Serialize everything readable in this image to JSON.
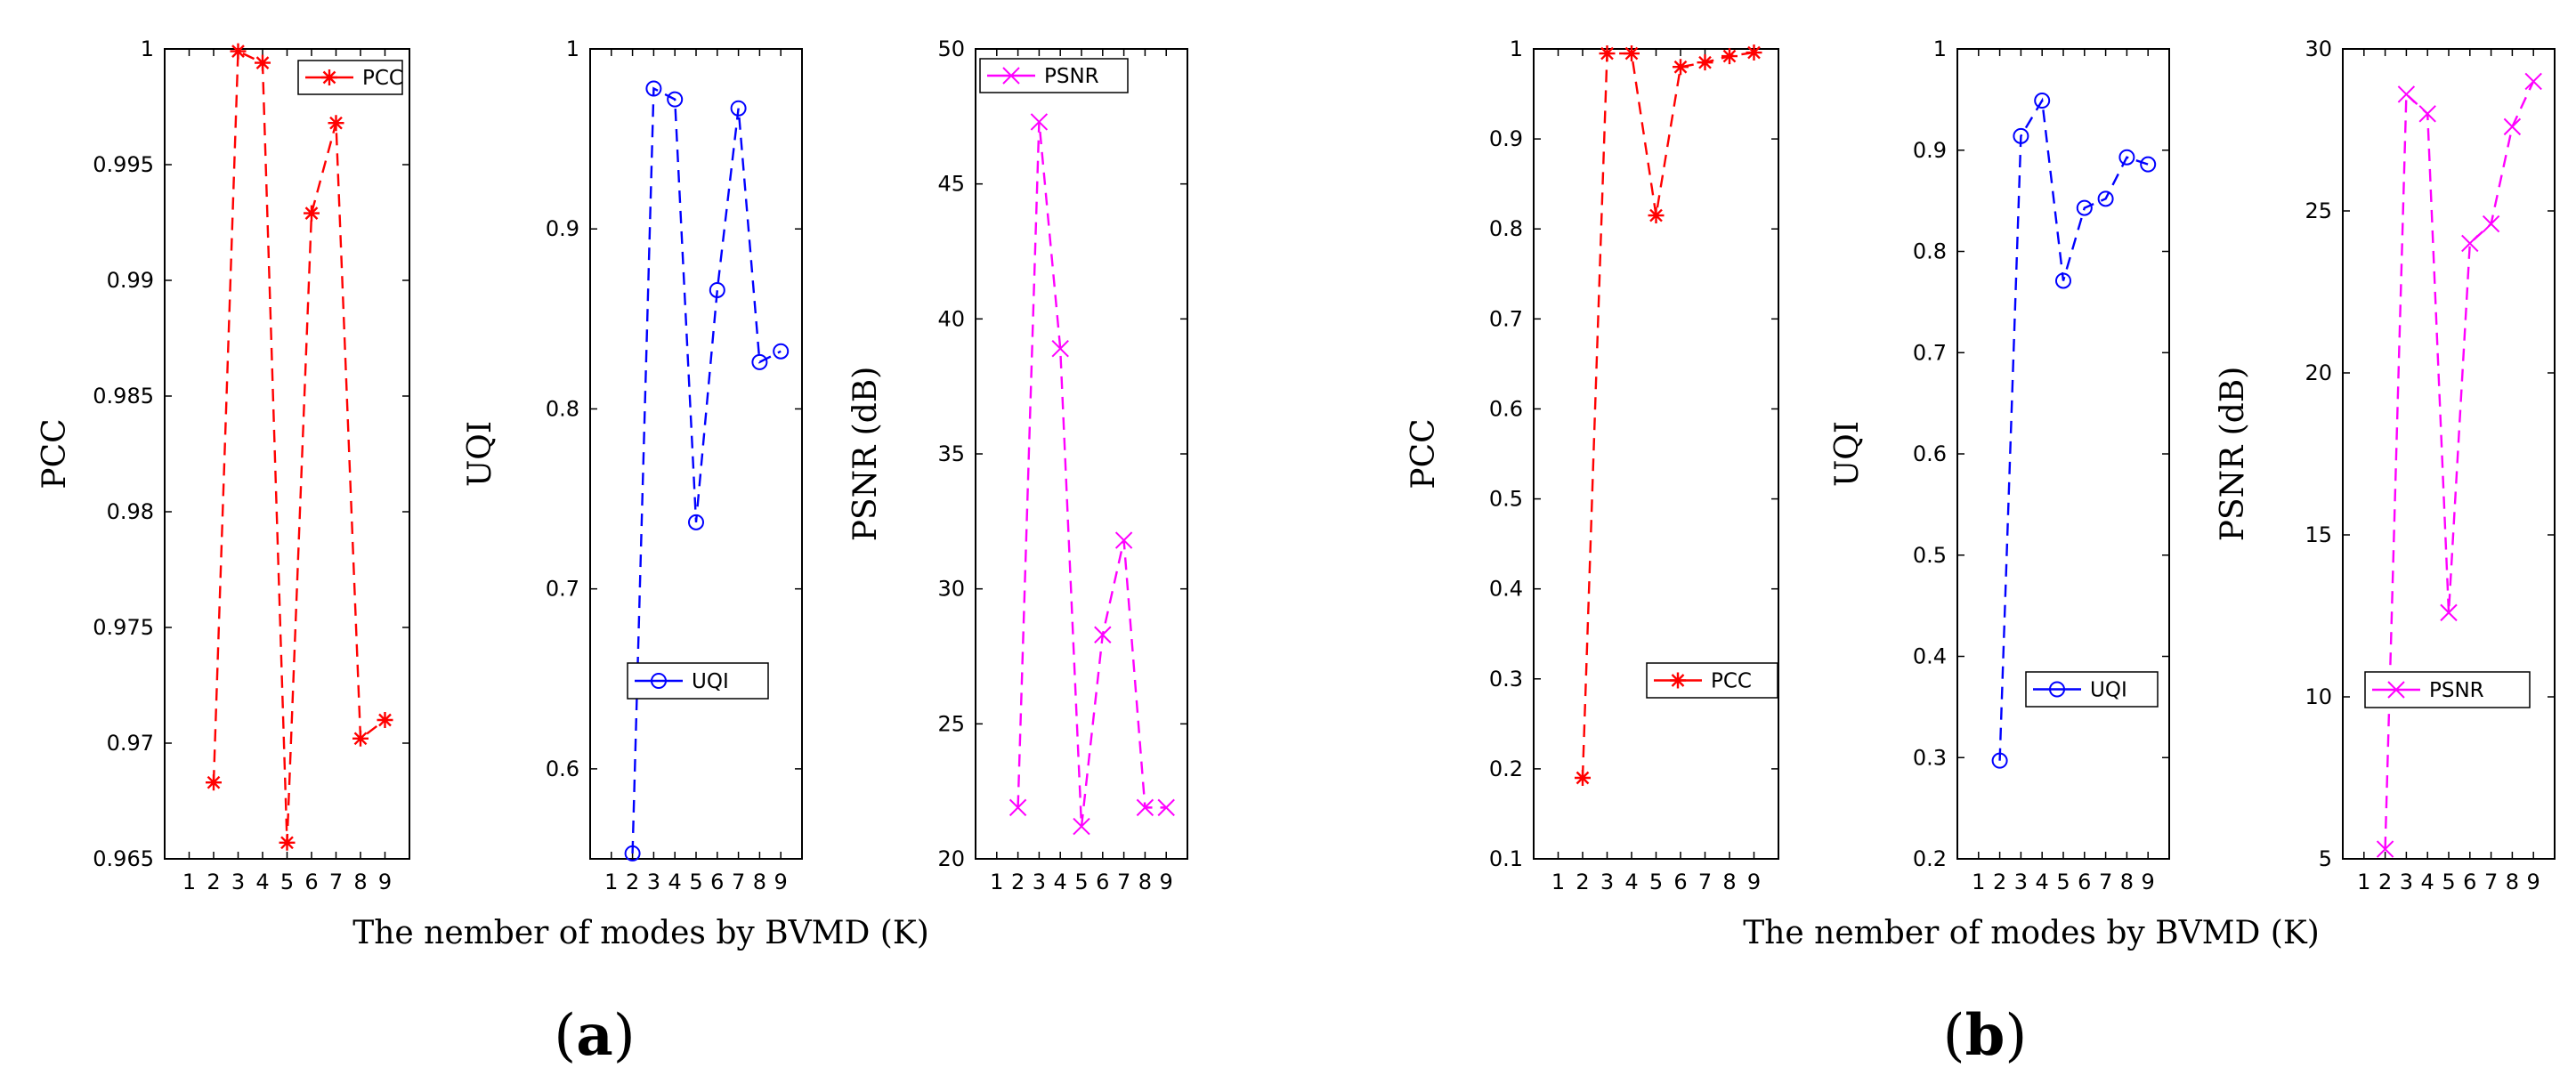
{
  "figure": {
    "panels": [
      {
        "caption_letter": "a",
        "xlabel": "The nember of modes by BVMD (K)"
      },
      {
        "caption_letter": "b",
        "xlabel": "The nember of modes by BVMD (K)"
      }
    ]
  },
  "chart_data": [
    {
      "type": "line",
      "panel": "a",
      "title": "",
      "xlabel": "The nember of modes by BVMD (K)",
      "ylabel": "PCC",
      "x": [
        2,
        3,
        4,
        5,
        6,
        7,
        8,
        9
      ],
      "xlim": [
        0,
        10
      ],
      "xticks": [
        1,
        2,
        3,
        4,
        5,
        6,
        7,
        8,
        9
      ],
      "ylim": [
        0.965,
        1
      ],
      "yticks": [
        "0.965",
        "0.97",
        "0.975",
        "0.98",
        "0.985",
        "0.99",
        "0.995",
        "1"
      ],
      "grid": false,
      "legend_position": "top-right",
      "series": [
        {
          "name": "PCC",
          "color": "#ff0000",
          "marker": "asterisk",
          "values": [
            0.9683,
            0.9999,
            0.9994,
            0.9657,
            0.9929,
            0.9968,
            0.9702,
            0.971
          ]
        }
      ]
    },
    {
      "type": "line",
      "panel": "a",
      "title": "",
      "xlabel": "",
      "ylabel": "UQI",
      "x": [
        2,
        3,
        4,
        5,
        6,
        7,
        8,
        9
      ],
      "xlim": [
        0,
        10
      ],
      "xticks": [
        1,
        2,
        3,
        4,
        5,
        6,
        7,
        8,
        9
      ],
      "ylim": [
        0.55,
        1
      ],
      "yticks": [
        "0.6",
        "0.7",
        "0.8",
        "0.9",
        "1"
      ],
      "grid": false,
      "legend_position": "middle-right",
      "series": [
        {
          "name": "UQI",
          "color": "#0000ff",
          "marker": "circle",
          "values": [
            0.553,
            0.978,
            0.972,
            0.737,
            0.866,
            0.967,
            0.826,
            0.832
          ]
        }
      ]
    },
    {
      "type": "line",
      "panel": "a",
      "title": "",
      "xlabel": "",
      "ylabel": "PSNR (dB)",
      "x": [
        2,
        3,
        4,
        5,
        6,
        7,
        8,
        9
      ],
      "xlim": [
        0,
        10
      ],
      "xticks": [
        1,
        2,
        3,
        4,
        5,
        6,
        7,
        8,
        9
      ],
      "ylim": [
        20,
        50
      ],
      "yticks": [
        "20",
        "25",
        "30",
        "35",
        "40",
        "45",
        "50"
      ],
      "grid": false,
      "legend_position": "top-right",
      "series": [
        {
          "name": "PSNR",
          "color": "#ff00ff",
          "marker": "x",
          "values": [
            21.9,
            47.3,
            38.9,
            21.2,
            28.3,
            31.8,
            21.9,
            21.9
          ]
        }
      ]
    },
    {
      "type": "line",
      "panel": "b",
      "title": "",
      "xlabel": "The nember of modes by BVMD (K)",
      "ylabel": "PCC",
      "x": [
        2,
        3,
        4,
        5,
        6,
        7,
        8,
        9
      ],
      "xlim": [
        0,
        10
      ],
      "xticks": [
        1,
        2,
        3,
        4,
        5,
        6,
        7,
        8,
        9
      ],
      "ylim": [
        0.1,
        1
      ],
      "yticks": [
        "0.1",
        "0.2",
        "0.3",
        "0.4",
        "0.5",
        "0.6",
        "0.7",
        "0.8",
        "0.9",
        "1"
      ],
      "grid": false,
      "legend_position": "middle-right",
      "series": [
        {
          "name": "PCC",
          "color": "#ff0000",
          "marker": "asterisk",
          "values": [
            0.19,
            0.995,
            0.995,
            0.815,
            0.98,
            0.985,
            0.992,
            0.996
          ]
        }
      ]
    },
    {
      "type": "line",
      "panel": "b",
      "title": "",
      "xlabel": "",
      "ylabel": "UQI",
      "x": [
        2,
        3,
        4,
        5,
        6,
        7,
        8,
        9
      ],
      "xlim": [
        0,
        10
      ],
      "xticks": [
        1,
        2,
        3,
        4,
        5,
        6,
        7,
        8,
        9
      ],
      "ylim": [
        0.2,
        1
      ],
      "yticks": [
        "0.2",
        "0.3",
        "0.4",
        "0.5",
        "0.6",
        "0.7",
        "0.8",
        "0.9",
        "1"
      ],
      "grid": false,
      "legend_position": "middle-right",
      "series": [
        {
          "name": "UQI",
          "color": "#0000ff",
          "marker": "circle",
          "values": [
            0.297,
            0.914,
            0.949,
            0.771,
            0.843,
            0.852,
            0.893,
            0.886
          ]
        }
      ]
    },
    {
      "type": "line",
      "panel": "b",
      "title": "",
      "xlabel": "",
      "ylabel": "PSNR (dB)",
      "x": [
        2,
        3,
        4,
        5,
        6,
        7,
        8,
        9
      ],
      "xlim": [
        0,
        10
      ],
      "xticks": [
        1,
        2,
        3,
        4,
        5,
        6,
        7,
        8,
        9
      ],
      "ylim": [
        5,
        30
      ],
      "yticks": [
        "5",
        "10",
        "15",
        "20",
        "25",
        "30"
      ],
      "grid": false,
      "legend_position": "middle-right",
      "series": [
        {
          "name": "PSNR",
          "color": "#ff00ff",
          "marker": "x",
          "values": [
            5.3,
            28.6,
            28.0,
            12.6,
            24.0,
            24.6,
            27.6,
            29.0
          ]
        }
      ]
    }
  ]
}
